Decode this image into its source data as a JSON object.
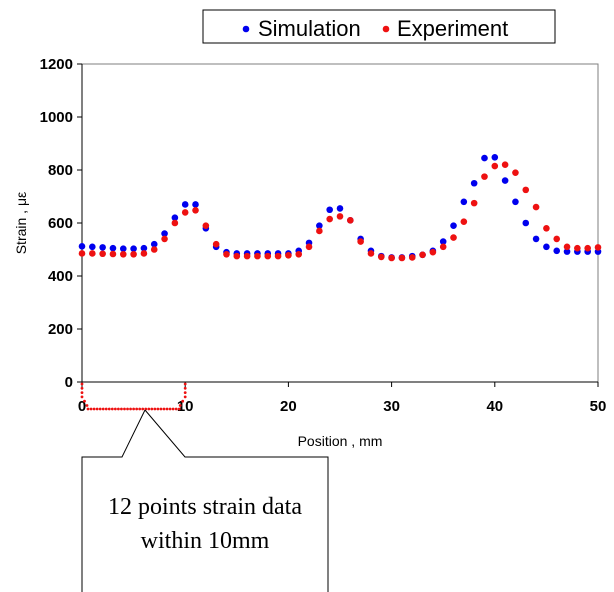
{
  "chart_data": {
    "type": "scatter",
    "xlabel": "Position , mm",
    "ylabel": "Strain , με",
    "xlim": [
      0,
      50
    ],
    "ylim": [
      0,
      1200
    ],
    "xticks": [
      0,
      10,
      20,
      30,
      40,
      50
    ],
    "yticks": [
      0,
      200,
      400,
      600,
      800,
      1000,
      1200
    ],
    "grid": false,
    "legend": "top",
    "series": [
      {
        "name": "Simulation",
        "color": "#0000ee",
        "x": [
          0,
          1,
          2,
          3,
          4,
          5,
          6,
          7,
          8,
          9,
          10,
          11,
          12,
          13,
          14,
          15,
          16,
          17,
          18,
          19,
          20,
          21,
          22,
          23,
          24,
          25,
          26,
          27,
          28,
          29,
          30,
          31,
          32,
          33,
          34,
          35,
          36,
          37,
          38,
          39,
          40,
          41,
          42,
          43,
          44,
          45,
          46,
          47,
          48,
          49,
          50
        ],
        "y": [
          512,
          510,
          508,
          505,
          503,
          503,
          505,
          520,
          560,
          620,
          670,
          670,
          580,
          510,
          490,
          485,
          485,
          485,
          485,
          485,
          485,
          495,
          525,
          590,
          650,
          655,
          610,
          540,
          495,
          475,
          470,
          470,
          475,
          480,
          495,
          530,
          590,
          680,
          750,
          845,
          848,
          760,
          680,
          600,
          540,
          510,
          495,
          492,
          492,
          492,
          492
        ]
      },
      {
        "name": "Experiment",
        "color": "#ee1111",
        "x": [
          0,
          1,
          2,
          3,
          4,
          5,
          6,
          7,
          8,
          9,
          10,
          11,
          12,
          13,
          14,
          15,
          16,
          17,
          18,
          19,
          20,
          21,
          22,
          23,
          24,
          25,
          26,
          27,
          28,
          29,
          30,
          31,
          32,
          33,
          34,
          35,
          36,
          37,
          38,
          39,
          40,
          41,
          42,
          43,
          44,
          45,
          46,
          47,
          48,
          49,
          50
        ],
        "y": [
          485,
          485,
          484,
          483,
          482,
          482,
          485,
          500,
          540,
          600,
          640,
          648,
          590,
          520,
          482,
          475,
          475,
          475,
          475,
          475,
          478,
          482,
          510,
          570,
          615,
          625,
          610,
          530,
          485,
          472,
          468,
          468,
          470,
          480,
          490,
          510,
          545,
          605,
          675,
          775,
          815,
          820,
          790,
          725,
          660,
          580,
          540,
          510,
          505,
          505,
          508
        ]
      }
    ]
  },
  "callout": {
    "line1": "12 points strain data",
    "line2": "within 10mm"
  }
}
